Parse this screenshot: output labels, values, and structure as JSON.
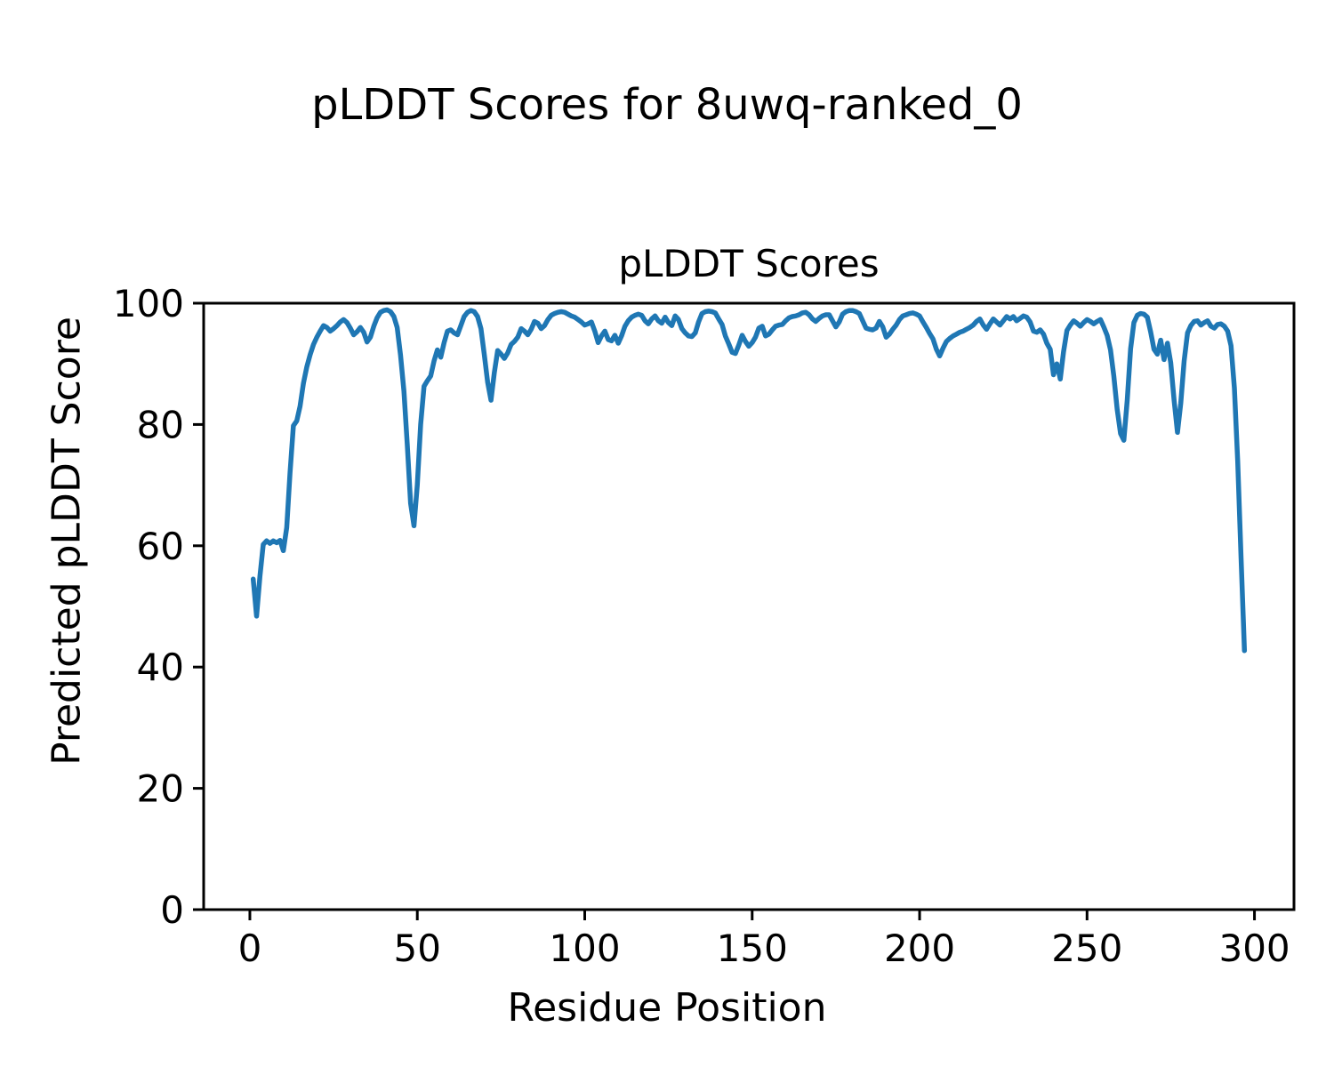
{
  "figure": {
    "suptitle": "pLDDT Scores for 8uwq-ranked_0",
    "background": "#ffffff",
    "text_color": "#000000"
  },
  "chart_data": {
    "type": "line",
    "title": "pLDDT Scores",
    "xlabel": "Residue Position",
    "ylabel": "Predicted pLDDT Score",
    "xlim": [
      -13.8,
      311.8
    ],
    "ylim": [
      0,
      100
    ],
    "xticks": [
      0,
      50,
      100,
      150,
      200,
      250,
      300
    ],
    "yticks": [
      0,
      20,
      40,
      60,
      80,
      100
    ],
    "grid": false,
    "legend": null,
    "line_color": "#1f77b4",
    "line_width": 5.5,
    "series_name": "pLDDT",
    "points": [
      [
        1,
        54.5
      ],
      [
        2,
        48.4
      ],
      [
        3,
        55
      ],
      [
        4,
        60.2
      ],
      [
        5,
        60.8
      ],
      [
        6,
        60.4
      ],
      [
        7,
        60.8
      ],
      [
        8,
        60.5
      ],
      [
        9,
        60.9
      ],
      [
        10,
        59.2
      ],
      [
        11,
        63
      ],
      [
        12,
        72
      ],
      [
        13,
        79.8
      ],
      [
        14,
        80.6
      ],
      [
        15,
        83
      ],
      [
        16,
        86.8
      ],
      [
        17,
        89.5
      ],
      [
        18,
        91.5
      ],
      [
        19,
        93.2
      ],
      [
        20,
        94.4
      ],
      [
        21,
        95.4
      ],
      [
        22,
        96.3
      ],
      [
        23,
        96
      ],
      [
        24,
        95.4
      ],
      [
        25,
        95.8
      ],
      [
        26,
        96.3
      ],
      [
        27,
        96.9
      ],
      [
        28,
        97.3
      ],
      [
        29,
        96.8
      ],
      [
        30,
        95.9
      ],
      [
        31,
        94.8
      ],
      [
        32,
        95.3
      ],
      [
        33,
        96
      ],
      [
        34,
        95.2
      ],
      [
        35,
        93.6
      ],
      [
        36,
        94.4
      ],
      [
        37,
        96.2
      ],
      [
        38,
        97.6
      ],
      [
        39,
        98.5
      ],
      [
        40,
        98.8
      ],
      [
        41,
        98.9
      ],
      [
        42,
        98.6
      ],
      [
        43,
        97.8
      ],
      [
        44,
        96
      ],
      [
        45,
        91.4
      ],
      [
        46,
        85.5
      ],
      [
        47,
        76.8
      ],
      [
        48,
        67
      ],
      [
        49,
        63.3
      ],
      [
        50,
        70
      ],
      [
        51,
        80
      ],
      [
        52,
        86.3
      ],
      [
        53,
        87.2
      ],
      [
        54,
        88
      ],
      [
        55,
        90.5
      ],
      [
        56,
        92.3
      ],
      [
        57,
        91.1
      ],
      [
        58,
        93.5
      ],
      [
        59,
        95.4
      ],
      [
        60,
        95.6
      ],
      [
        61,
        95.1
      ],
      [
        62,
        94.8
      ],
      [
        63,
        96.3
      ],
      [
        64,
        97.8
      ],
      [
        65,
        98.5
      ],
      [
        66,
        98.8
      ],
      [
        67,
        98.6
      ],
      [
        68,
        97.8
      ],
      [
        69,
        95.8
      ],
      [
        70,
        91.6
      ],
      [
        71,
        87
      ],
      [
        72,
        84
      ],
      [
        73,
        88.5
      ],
      [
        74,
        92.2
      ],
      [
        75,
        91.6
      ],
      [
        76,
        90.9
      ],
      [
        77,
        91.8
      ],
      [
        78,
        93.2
      ],
      [
        79,
        93.7
      ],
      [
        80,
        94.4
      ],
      [
        81,
        95.8
      ],
      [
        82,
        95.4
      ],
      [
        83,
        94.8
      ],
      [
        84,
        95.7
      ],
      [
        85,
        97
      ],
      [
        86,
        96.7
      ],
      [
        87,
        95.8
      ],
      [
        88,
        96.3
      ],
      [
        89,
        97.3
      ],
      [
        90,
        98
      ],
      [
        91,
        98.3
      ],
      [
        92,
        98.5
      ],
      [
        93,
        98.6
      ],
      [
        94,
        98.5
      ],
      [
        95,
        98.2
      ],
      [
        96,
        97.9
      ],
      [
        97,
        97.7
      ],
      [
        98,
        97.3
      ],
      [
        99,
        96.9
      ],
      [
        100,
        96.4
      ],
      [
        101,
        96.6
      ],
      [
        102,
        96.9
      ],
      [
        103,
        95.4
      ],
      [
        104,
        93.5
      ],
      [
        105,
        94.6
      ],
      [
        106,
        95.4
      ],
      [
        107,
        94
      ],
      [
        108,
        93.8
      ],
      [
        109,
        94.7
      ],
      [
        110,
        93.4
      ],
      [
        111,
        94.6
      ],
      [
        112,
        96.2
      ],
      [
        113,
        97.1
      ],
      [
        114,
        97.7
      ],
      [
        115,
        98
      ],
      [
        116,
        98.2
      ],
      [
        117,
        98
      ],
      [
        118,
        97.1
      ],
      [
        119,
        96.6
      ],
      [
        120,
        97.4
      ],
      [
        121,
        97.9
      ],
      [
        122,
        97.1
      ],
      [
        123,
        96.7
      ],
      [
        124,
        97.7
      ],
      [
        125,
        96.8
      ],
      [
        126,
        96.3
      ],
      [
        127,
        97.9
      ],
      [
        128,
        97.3
      ],
      [
        129,
        95.8
      ],
      [
        130,
        95.1
      ],
      [
        131,
        94.6
      ],
      [
        132,
        94.5
      ],
      [
        133,
        95.1
      ],
      [
        134,
        96.9
      ],
      [
        135,
        98.3
      ],
      [
        136,
        98.6
      ],
      [
        137,
        98.7
      ],
      [
        138,
        98.6
      ],
      [
        139,
        98.4
      ],
      [
        140,
        97.4
      ],
      [
        141,
        96.5
      ],
      [
        142,
        94.6
      ],
      [
        143,
        93.3
      ],
      [
        144,
        91.9
      ],
      [
        145,
        91.7
      ],
      [
        146,
        93.1
      ],
      [
        147,
        94.7
      ],
      [
        148,
        93.7
      ],
      [
        149,
        92.9
      ],
      [
        150,
        93.5
      ],
      [
        151,
        94.4
      ],
      [
        152,
        95.9
      ],
      [
        153,
        96.2
      ],
      [
        154,
        94.6
      ],
      [
        155,
        94.9
      ],
      [
        156,
        95.6
      ],
      [
        157,
        96.2
      ],
      [
        158,
        96.4
      ],
      [
        159,
        96.5
      ],
      [
        160,
        97.1
      ],
      [
        161,
        97.6
      ],
      [
        162,
        97.8
      ],
      [
        163,
        97.9
      ],
      [
        164,
        98.1
      ],
      [
        165,
        98.4
      ],
      [
        166,
        98.5
      ],
      [
        167,
        98.1
      ],
      [
        168,
        97.4
      ],
      [
        169,
        97
      ],
      [
        170,
        97.5
      ],
      [
        171,
        97.9
      ],
      [
        172,
        98.1
      ],
      [
        173,
        98.1
      ],
      [
        174,
        97.1
      ],
      [
        175,
        96.1
      ],
      [
        176,
        96.9
      ],
      [
        177,
        98.2
      ],
      [
        178,
        98.6
      ],
      [
        179,
        98.8
      ],
      [
        180,
        98.8
      ],
      [
        181,
        98.6
      ],
      [
        182,
        98.3
      ],
      [
        183,
        97.1
      ],
      [
        184,
        95.9
      ],
      [
        185,
        95.7
      ],
      [
        186,
        95.6
      ],
      [
        187,
        95.9
      ],
      [
        188,
        97
      ],
      [
        189,
        96.1
      ],
      [
        190,
        94.4
      ],
      [
        191,
        94.9
      ],
      [
        192,
        95.7
      ],
      [
        193,
        96.4
      ],
      [
        194,
        97.3
      ],
      [
        195,
        97.9
      ],
      [
        196,
        98.1
      ],
      [
        197,
        98.3
      ],
      [
        198,
        98.4
      ],
      [
        199,
        98.2
      ],
      [
        200,
        97.9
      ],
      [
        201,
        96.9
      ],
      [
        202,
        96
      ],
      [
        203,
        95
      ],
      [
        204,
        94.1
      ],
      [
        205,
        92.4
      ],
      [
        206,
        91.3
      ],
      [
        207,
        92.6
      ],
      [
        208,
        93.7
      ],
      [
        209,
        94.2
      ],
      [
        210,
        94.6
      ],
      [
        211,
        94.9
      ],
      [
        212,
        95.2
      ],
      [
        213,
        95.4
      ],
      [
        214,
        95.7
      ],
      [
        215,
        96
      ],
      [
        216,
        96.4
      ],
      [
        217,
        97
      ],
      [
        218,
        97.4
      ],
      [
        219,
        96.4
      ],
      [
        220,
        95.7
      ],
      [
        221,
        96.6
      ],
      [
        222,
        97.4
      ],
      [
        223,
        96.9
      ],
      [
        224,
        96.4
      ],
      [
        225,
        97.1
      ],
      [
        226,
        97.8
      ],
      [
        227,
        97.4
      ],
      [
        228,
        97.8
      ],
      [
        229,
        97.1
      ],
      [
        230,
        97.5
      ],
      [
        231,
        97.9
      ],
      [
        232,
        97.7
      ],
      [
        233,
        96.9
      ],
      [
        234,
        95.4
      ],
      [
        235,
        95.2
      ],
      [
        236,
        95.6
      ],
      [
        237,
        94.9
      ],
      [
        238,
        93.4
      ],
      [
        239,
        92.4
      ],
      [
        240,
        88.2
      ],
      [
        241,
        90
      ],
      [
        242,
        87.5
      ],
      [
        243,
        92
      ],
      [
        244,
        95.5
      ],
      [
        245,
        96.4
      ],
      [
        246,
        97.1
      ],
      [
        247,
        96.7
      ],
      [
        248,
        96.2
      ],
      [
        249,
        96.8
      ],
      [
        250,
        97.3
      ],
      [
        251,
        97
      ],
      [
        252,
        96.6
      ],
      [
        253,
        97
      ],
      [
        254,
        97.3
      ],
      [
        255,
        96.1
      ],
      [
        256,
        94.7
      ],
      [
        257,
        92.3
      ],
      [
        258,
        88
      ],
      [
        259,
        82.5
      ],
      [
        260,
        78.5
      ],
      [
        261,
        77.4
      ],
      [
        262,
        84
      ],
      [
        263,
        92.5
      ],
      [
        264,
        96.8
      ],
      [
        265,
        98
      ],
      [
        266,
        98.3
      ],
      [
        267,
        98.2
      ],
      [
        268,
        97.7
      ],
      [
        269,
        95.3
      ],
      [
        270,
        92.4
      ],
      [
        271,
        91.6
      ],
      [
        272,
        93.9
      ],
      [
        273,
        90.7
      ],
      [
        274,
        93.4
      ],
      [
        275,
        90.2
      ],
      [
        276,
        84
      ],
      [
        277,
        78.7
      ],
      [
        278,
        83.5
      ],
      [
        279,
        90.5
      ],
      [
        280,
        95.1
      ],
      [
        281,
        96.3
      ],
      [
        282,
        97
      ],
      [
        283,
        97.1
      ],
      [
        284,
        96.4
      ],
      [
        285,
        96.8
      ],
      [
        286,
        97.1
      ],
      [
        287,
        96.2
      ],
      [
        288,
        95.9
      ],
      [
        289,
        96.5
      ],
      [
        290,
        96.6
      ],
      [
        291,
        96.2
      ],
      [
        292,
        95.4
      ],
      [
        293,
        93
      ],
      [
        294,
        86
      ],
      [
        295,
        74
      ],
      [
        296,
        58
      ],
      [
        297,
        42.7
      ]
    ]
  }
}
